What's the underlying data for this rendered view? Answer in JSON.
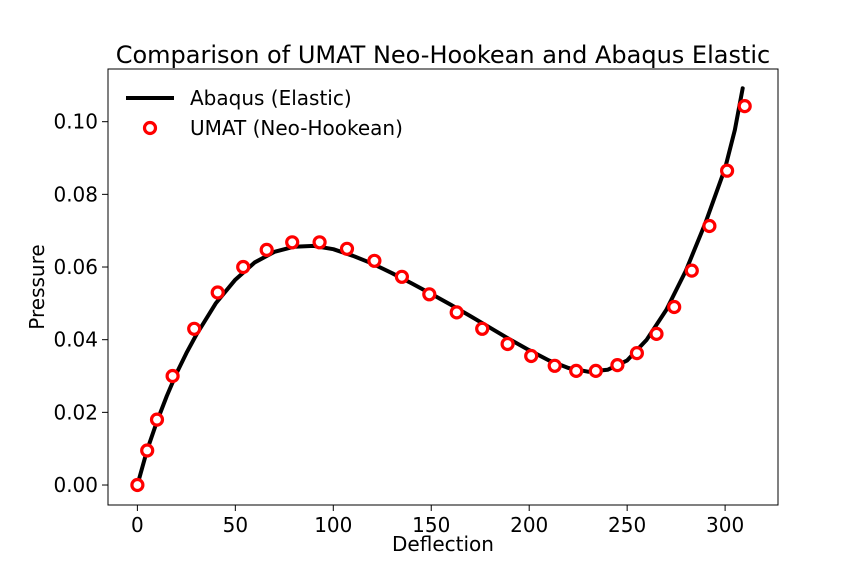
{
  "chart_data": {
    "type": "line",
    "title": "Comparison of UMAT Neo-Hookean and Abaqus Elastic",
    "xlabel": "Deflection",
    "ylabel": "Pressure",
    "xlim": [
      -15,
      327
    ],
    "ylim": [
      -0.0055,
      0.1145
    ],
    "xticks": [
      0,
      50,
      100,
      150,
      200,
      250,
      300
    ],
    "yticks": [
      0.0,
      0.02,
      0.04,
      0.06,
      0.08,
      0.1
    ],
    "ytick_labels": [
      "0.00",
      "0.02",
      "0.04",
      "0.06",
      "0.08",
      "0.10"
    ],
    "legend": "top-left",
    "grid": false,
    "series": [
      {
        "name": "Abaqus (Elastic)",
        "style": "line",
        "color": "#000000",
        "x": [
          0,
          5,
          10,
          15,
          20,
          25,
          30,
          40,
          50,
          60,
          70,
          80,
          90,
          100,
          110,
          120,
          130,
          140,
          150,
          160,
          170,
          180,
          190,
          200,
          210,
          220,
          230,
          240,
          250,
          260,
          270,
          280,
          290,
          300,
          305,
          309
        ],
        "y": [
          0.0,
          0.0097,
          0.0175,
          0.0245,
          0.0308,
          0.0363,
          0.0413,
          0.05,
          0.0565,
          0.0613,
          0.0642,
          0.0656,
          0.0658,
          0.0649,
          0.0631,
          0.0609,
          0.0583,
          0.0555,
          0.0526,
          0.0496,
          0.0465,
          0.0433,
          0.0401,
          0.0371,
          0.0343,
          0.0322,
          0.0312,
          0.0317,
          0.0343,
          0.04,
          0.0482,
          0.059,
          0.0722,
          0.0872,
          0.0978,
          0.1092
        ]
      },
      {
        "name": "UMAT (Neo-Hookean)",
        "style": "marker",
        "color": "#ff0000",
        "x": [
          0,
          5,
          10,
          18,
          29,
          41,
          54,
          66,
          79,
          93,
          107,
          121,
          135,
          149,
          163,
          176,
          189,
          201,
          213,
          224,
          234,
          245,
          255,
          265,
          274,
          283,
          292,
          301,
          310
        ],
        "y": [
          0.0,
          0.0095,
          0.018,
          0.03,
          0.043,
          0.053,
          0.06,
          0.0647,
          0.0668,
          0.0668,
          0.065,
          0.0617,
          0.0573,
          0.0525,
          0.0475,
          0.043,
          0.0388,
          0.0355,
          0.0328,
          0.0314,
          0.0314,
          0.033,
          0.0363,
          0.0416,
          0.049,
          0.059,
          0.0713,
          0.0865,
          0.1043
        ]
      }
    ]
  }
}
